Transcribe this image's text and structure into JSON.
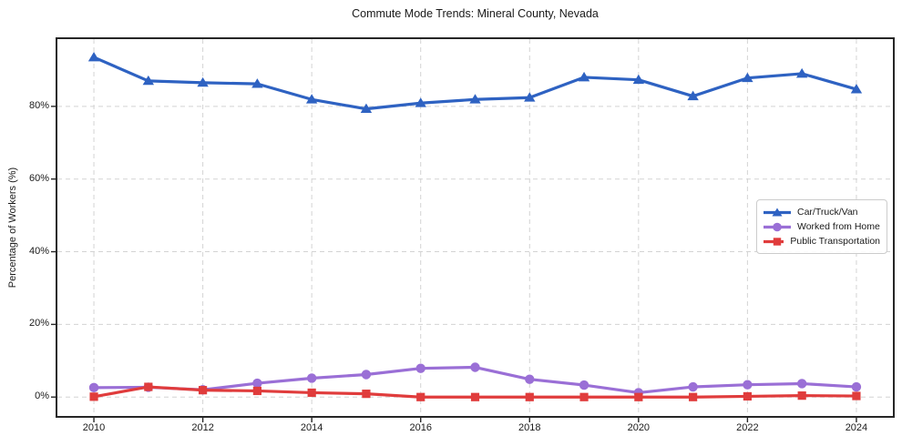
{
  "chart_data": {
    "type": "line",
    "title": "Commute Mode Trends: Mineral County, Nevada",
    "xlabel": "",
    "ylabel": "Percentage of Workers (%)",
    "x": [
      2010,
      2011,
      2012,
      2013,
      2014,
      2015,
      2016,
      2017,
      2018,
      2019,
      2020,
      2021,
      2022,
      2023,
      2024
    ],
    "series": [
      {
        "name": "Car/Truck/Van",
        "marker": "triangle",
        "color": "#2e62c2",
        "values": [
          93.5,
          87.0,
          86.5,
          86.2,
          81.9,
          79.3,
          80.9,
          81.9,
          82.4,
          88.0,
          87.3,
          82.8,
          87.8,
          89.0,
          84.7
        ]
      },
      {
        "name": "Worked from Home",
        "marker": "circle",
        "color": "#9a6fd6",
        "values": [
          2.6,
          2.7,
          2.0,
          3.8,
          5.2,
          6.2,
          7.9,
          8.2,
          4.9,
          3.3,
          1.2,
          2.8,
          3.4,
          3.7,
          2.8
        ]
      },
      {
        "name": "Public Transportation",
        "marker": "square",
        "color": "#e03c3c",
        "values": [
          0.1,
          2.8,
          1.9,
          1.7,
          1.2,
          0.9,
          0.0,
          0.0,
          0.0,
          0.0,
          0.0,
          0.0,
          0.2,
          0.4,
          0.3
        ]
      }
    ],
    "xlim": [
      2009.33,
      2024.67
    ],
    "ylim": [
      -5.2,
      98.5
    ],
    "x_ticks": [
      {
        "value": 2010,
        "label": "2010"
      },
      {
        "value": 2012,
        "label": "2012"
      },
      {
        "value": 2014,
        "label": "2014"
      },
      {
        "value": 2016,
        "label": "2016"
      },
      {
        "value": 2018,
        "label": "2018"
      },
      {
        "value": 2020,
        "label": "2020"
      },
      {
        "value": 2022,
        "label": "2022"
      },
      {
        "value": 2024,
        "label": "2024"
      }
    ],
    "y_ticks": [
      {
        "value": 0,
        "label": "0%"
      },
      {
        "value": 20,
        "label": "20%"
      },
      {
        "value": 40,
        "label": "40%"
      },
      {
        "value": 60,
        "label": "60%"
      },
      {
        "value": 80,
        "label": "80%"
      }
    ],
    "grid": "dashed",
    "grid_color": "#d3d3d3",
    "legend_position": "center-right"
  }
}
